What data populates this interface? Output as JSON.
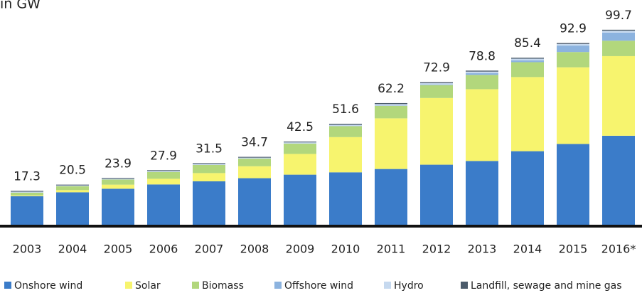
{
  "chart_data": {
    "type": "stacked_bar",
    "title": "in GW",
    "categories": [
      "2003",
      "2004",
      "2005",
      "2006",
      "2007",
      "2008",
      "2009",
      "2010",
      "2011",
      "2012",
      "2013",
      "2014",
      "2015",
      "2016*"
    ],
    "totals": [
      17.3,
      20.5,
      23.9,
      27.9,
      31.5,
      34.7,
      42.5,
      51.6,
      62.2,
      72.9,
      78.8,
      85.4,
      92.9,
      99.7
    ],
    "series": [
      {
        "name": "Onshore wind",
        "color": "#3b7cc9",
        "values": [
          14.6,
          16.6,
          18.4,
          20.6,
          22.2,
          23.8,
          25.6,
          26.8,
          28.5,
          30.7,
          32.6,
          37.6,
          41.3,
          45.5
        ]
      },
      {
        "name": "Solar",
        "color": "#f7f46e",
        "values": [
          0.4,
          1.1,
          2.1,
          2.9,
          4.2,
          6.1,
          10.6,
          18.0,
          25.9,
          34.1,
          36.7,
          37.9,
          39.2,
          40.7
        ]
      },
      {
        "name": "Biomass",
        "color": "#b2d77c",
        "values": [
          1.4,
          2.0,
          2.6,
          3.5,
          4.2,
          3.9,
          5.3,
          5.6,
          6.4,
          6.6,
          7.3,
          7.6,
          7.8,
          7.9
        ]
      },
      {
        "name": "Offshore wind",
        "color": "#8cb3df",
        "values": [
          0,
          0,
          0,
          0,
          0,
          0,
          0,
          0.1,
          0.2,
          0.3,
          0.9,
          1.0,
          3.3,
          4.1
        ]
      },
      {
        "name": "Hydro",
        "color": "#c6d9ef",
        "values": [
          0.5,
          0.4,
          0.4,
          0.5,
          0.5,
          0.5,
          0.6,
          0.6,
          0.7,
          0.7,
          0.8,
          0.8,
          0.8,
          1.0
        ]
      },
      {
        "name": "Landfill, sewage and mine gas",
        "color": "#4b5b6b",
        "values": [
          0.4,
          0.4,
          0.4,
          0.4,
          0.4,
          0.4,
          0.4,
          0.5,
          0.5,
          0.5,
          0.5,
          0.5,
          0.5,
          0.5
        ]
      }
    ],
    "ylim": [
      0,
      100
    ]
  }
}
